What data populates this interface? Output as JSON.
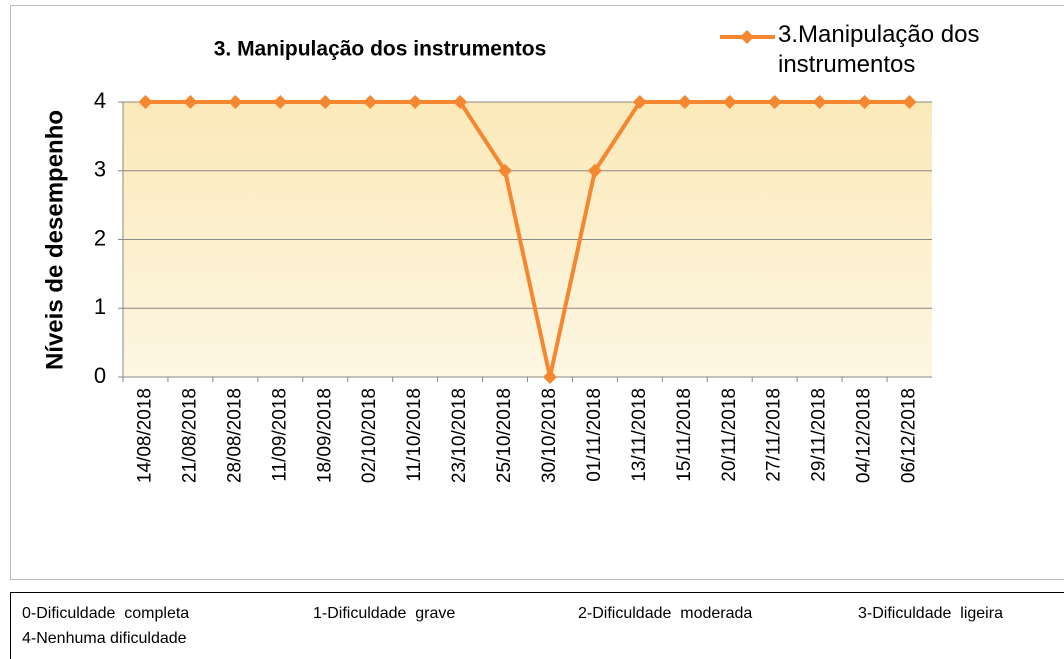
{
  "chart_data": {
    "type": "line",
    "title": "3. Manipulação dos instrumentos",
    "y_label": "Níveis de desempenho",
    "categories": [
      "14/08/2018",
      "21/08/2018",
      "28/08/2018",
      "11/09/2018",
      "18/09/2018",
      "02/10/2018",
      "11/10/2018",
      "23/10/2018",
      "25/10/2018",
      "30/10/2018",
      "01/11/2018",
      "13/11/2018",
      "15/11/2018",
      "20/11/2018",
      "27/11/2018",
      "29/11/2018",
      "04/12/2018",
      "06/12/2018"
    ],
    "series": [
      {
        "name": "3.Manipulação dos instrumentos",
        "color": "#f4872f",
        "values": [
          4,
          4,
          4,
          4,
          4,
          4,
          4,
          4,
          3,
          0,
          3,
          4,
          4,
          4,
          4,
          4,
          4,
          4
        ]
      }
    ],
    "ylim": [
      0,
      4
    ],
    "yticks": [
      0,
      1,
      2,
      3,
      4
    ],
    "grid": true,
    "legend": "top-right"
  },
  "note": [
    "0-Dificuldade  completa",
    "1-Dificuldade  grave",
    "2-Dificuldade  moderada",
    "3-Dificuldade  ligeira",
    "4-Nenhuma dificuldade"
  ]
}
